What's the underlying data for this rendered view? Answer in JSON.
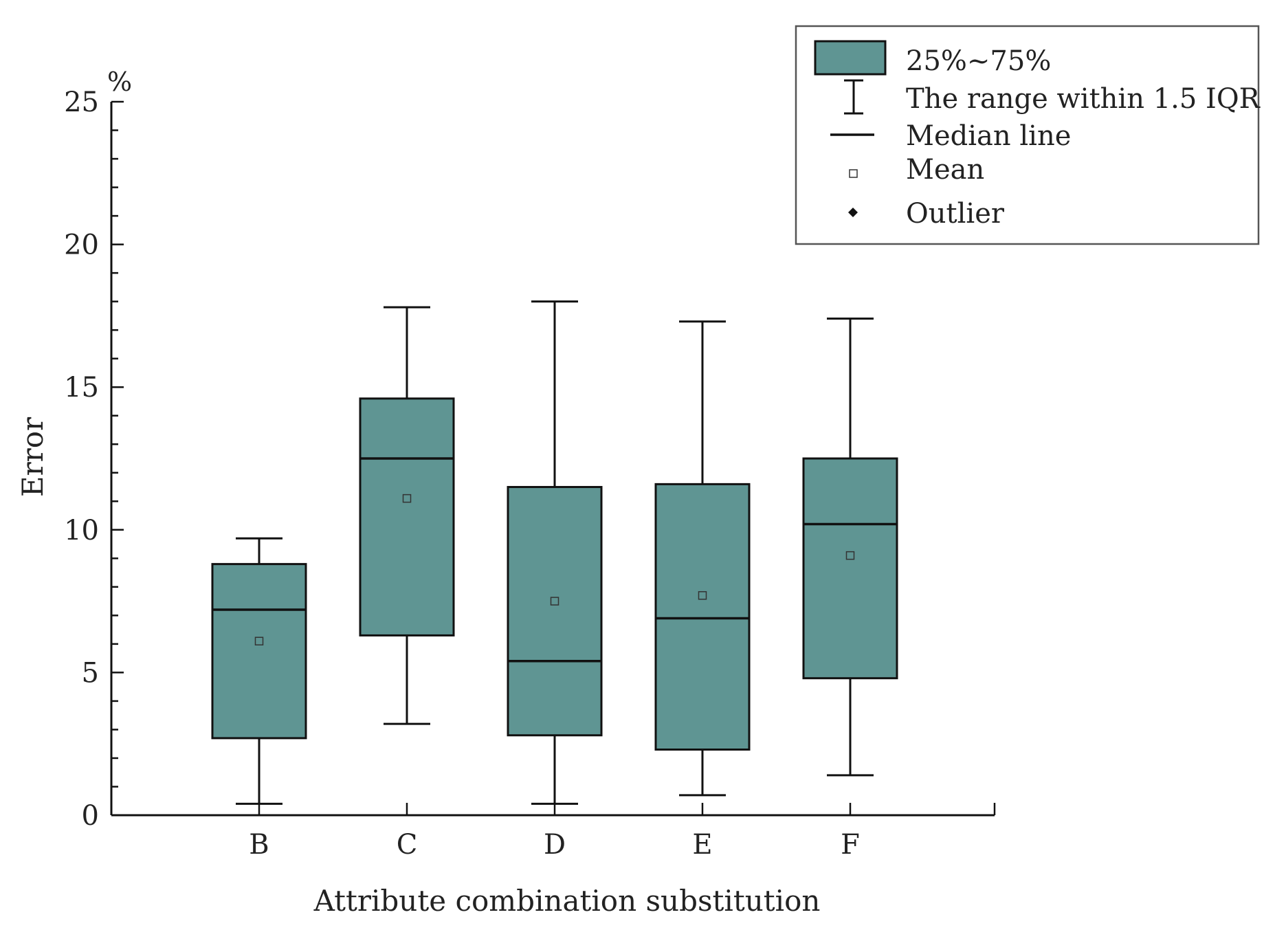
{
  "chart_data": {
    "type": "box",
    "xlabel": "Attribute combination substitution",
    "ylabel": "Error",
    "yunit": "%",
    "ylim": [
      0,
      25
    ],
    "yticks": [
      0,
      5,
      10,
      15,
      20,
      25
    ],
    "box_color": "#5f9593",
    "categories": [
      "B",
      "C",
      "D",
      "E",
      "F"
    ],
    "boxes": [
      {
        "category": "B",
        "whisker_low": 0.4,
        "q1": 2.7,
        "median": 7.2,
        "q3": 8.8,
        "whisker_high": 9.7,
        "mean": 6.1
      },
      {
        "category": "C",
        "whisker_low": 3.2,
        "q1": 6.3,
        "median": 12.5,
        "q3": 14.6,
        "whisker_high": 17.8,
        "mean": 11.1
      },
      {
        "category": "D",
        "whisker_low": 0.4,
        "q1": 2.8,
        "median": 5.4,
        "q3": 11.5,
        "whisker_high": 18.0,
        "mean": 7.5
      },
      {
        "category": "E",
        "whisker_low": 0.7,
        "q1": 2.3,
        "median": 6.9,
        "q3": 11.6,
        "whisker_high": 17.3,
        "mean": 7.7
      },
      {
        "category": "F",
        "whisker_low": 1.4,
        "q1": 4.8,
        "median": 10.2,
        "q3": 12.5,
        "whisker_high": 17.4,
        "mean": 9.1
      }
    ],
    "legend": {
      "position": "top-right",
      "entries": [
        {
          "key": "box",
          "label": "25%~75%"
        },
        {
          "key": "whisker",
          "label": "The range within 1.5 IQR"
        },
        {
          "key": "median",
          "label": "Median line"
        },
        {
          "key": "mean",
          "label": "Mean"
        },
        {
          "key": "outlier",
          "label": "Outlier"
        }
      ]
    }
  }
}
